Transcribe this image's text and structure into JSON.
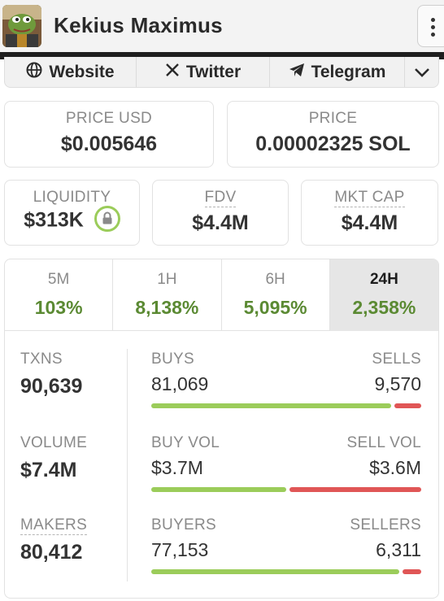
{
  "header": {
    "title": "Kekius Maximus",
    "avatar_icon": "frog-avatar-icon",
    "menu_icon": "more-vertical-icon"
  },
  "links": {
    "website": "Website",
    "twitter": "Twitter",
    "telegram": "Telegram",
    "more_icon": "chevron-down-icon"
  },
  "price": {
    "usd_label": "PRICE USD",
    "usd_value": "$0.005646",
    "native_label": "PRICE",
    "native_value": "0.00002325 SOL"
  },
  "metrics": {
    "liquidity_label": "LIQUIDITY",
    "liquidity_value": "$313K",
    "fdv_label": "FDV",
    "fdv_value": "$4.4M",
    "mktcap_label": "MKT CAP",
    "mktcap_value": "$4.4M"
  },
  "tabs": [
    {
      "label": "5M",
      "value": "103%"
    },
    {
      "label": "1H",
      "value": "8,138%"
    },
    {
      "label": "6H",
      "value": "5,095%"
    },
    {
      "label": "24H",
      "value": "2,358%",
      "active": true
    }
  ],
  "stats": {
    "txns_label": "TXNS",
    "txns_value": "90,639",
    "volume_label": "VOLUME",
    "volume_value": "$7.4M",
    "makers_label": "MAKERS",
    "makers_value": "80,412"
  },
  "rows": {
    "buys_label": "BUYS",
    "buys_value": "81,069",
    "sells_label": "SELLS",
    "sells_value": "9,570",
    "buys_share": 0.894,
    "buyvol_label": "BUY VOL",
    "buyvol_value": "$3.7M",
    "sellvol_label": "SELL VOL",
    "sellvol_value": "$3.6M",
    "buyvol_share": 0.507,
    "buyers_label": "BUYERS",
    "buyers_value": "77,153",
    "sellers_label": "SELLERS",
    "sellers_value": "6,311",
    "buyers_share": 0.924
  },
  "colors": {
    "positive": "#5b8a33",
    "buy_bar": "#9bcc5a",
    "sell_bar": "#e05656"
  }
}
